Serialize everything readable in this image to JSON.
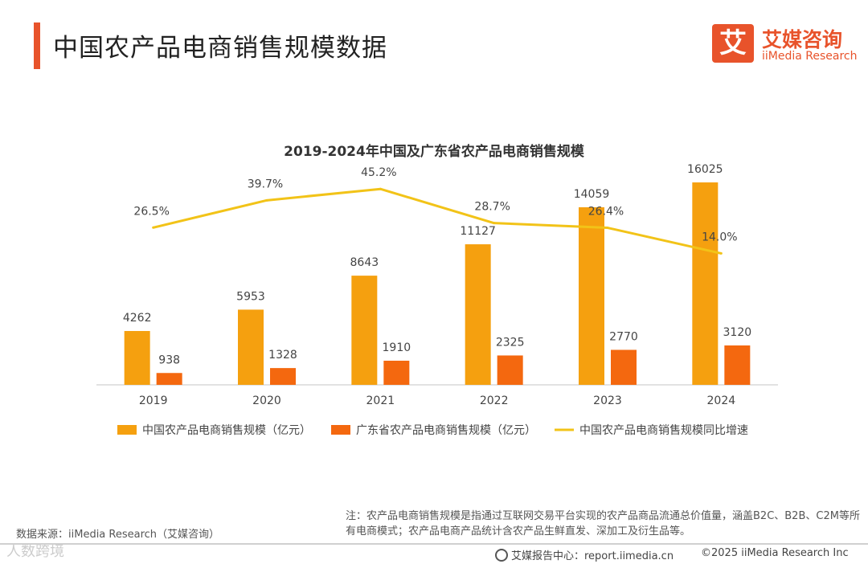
{
  "page": {
    "title": "中国农产品电商销售规模数据"
  },
  "brand": {
    "logo_char": "艾",
    "name_cn": "艾媒咨询",
    "name_en": "iiMedia Research",
    "color": "#e8532b"
  },
  "colors": {
    "accent": "#e8532b",
    "china_bar": "#f5a00f",
    "guangdong_bar": "#f4680f",
    "growth_line": "#f2c318",
    "axis": "#d9d9d9",
    "label": "#444444"
  },
  "chart_data": {
    "type": "bar",
    "title": "2019-2024年中国及广东省农产品电商销售规模",
    "categories": [
      "2019",
      "2020",
      "2021",
      "2022",
      "2023",
      "2024"
    ],
    "series": [
      {
        "name": "中国农产品电商销售规模（亿元）",
        "type": "bar",
        "values": [
          4262,
          5953,
          8643,
          11127,
          14059,
          16025
        ]
      },
      {
        "name": "广东省农产品电商销售规模（亿元）",
        "type": "bar",
        "values": [
          938,
          1328,
          1910,
          2325,
          2770,
          3120
        ]
      },
      {
        "name": "中国农产品电商销售规模同比增速",
        "type": "line",
        "values": [
          26.5,
          39.7,
          45.2,
          28.7,
          26.4,
          14.0
        ],
        "labels": [
          "26.5%",
          "39.7%",
          "45.2%",
          "28.7%",
          "26.4%",
          "14.0%"
        ]
      }
    ],
    "bar_ylim": [
      0,
      18000
    ],
    "line_ylim": [
      -50,
      55
    ],
    "legend_position": "bottom",
    "grid": false
  },
  "footer": {
    "source": "数据来源：iiMedia Research（艾媒咨询）",
    "note": "注：农产品电商销售规模是指通过互联网交易平台实现的农产品商品流通总价值量，涵盖B2C、B2B、C2M等所有电商模式；农产品电商产品统计含农产品生鲜直发、深加工及衍生品等。",
    "center": "艾媒报告中心：report.iimedia.cn",
    "copyright": "©2025  iiMedia Research  Inc",
    "watermark": "人数跨境"
  }
}
